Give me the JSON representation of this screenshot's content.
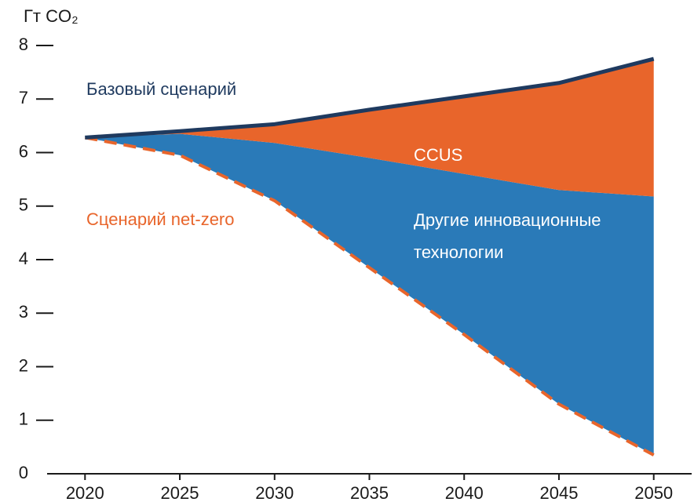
{
  "chart_data": {
    "type": "stacked_area",
    "ylabel": "Гт CO₂",
    "x": [
      2020,
      2025,
      2030,
      2035,
      2040,
      2045,
      2050
    ],
    "xlim": [
      2018,
      2052
    ],
    "xticks": [
      2020,
      2025,
      2030,
      2035,
      2040,
      2045,
      2050
    ],
    "ylim": [
      0,
      8
    ],
    "yticks": [
      0,
      1,
      2,
      3,
      4,
      5,
      6,
      7,
      8
    ],
    "series": [
      {
        "name": "Сценарий net-zero",
        "color": "#e8652b",
        "style": "dashed",
        "kind": "line",
        "values": [
          6.28,
          5.95,
          5.1,
          3.85,
          2.6,
          1.3,
          0.35
        ]
      },
      {
        "name": "Другие инновационные технологии",
        "color": "#2a7ab8",
        "kind": "area",
        "values": [
          0,
          0.4,
          1.08,
          2.05,
          3.0,
          4.0,
          4.83
        ]
      },
      {
        "name": "CCUS",
        "color": "#e8652b",
        "kind": "area",
        "values": [
          0,
          0.05,
          0.35,
          0.9,
          1.45,
          2.0,
          2.57
        ]
      },
      {
        "name": "Базовый сценарий",
        "color": "#1f3a5f",
        "style": "solid",
        "kind": "line",
        "values": [
          6.28,
          6.4,
          6.53,
          6.8,
          7.05,
          7.3,
          7.75
        ]
      }
    ]
  }
}
